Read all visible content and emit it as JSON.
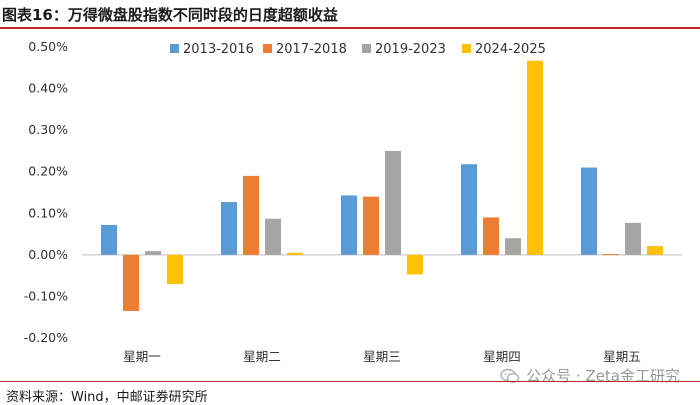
{
  "header": {
    "title": "图表16：万得微盘股指数不同时段的日度超额收益"
  },
  "footer": {
    "source": "资料来源：Wind，中邮证券研究所"
  },
  "watermark": {
    "text": "公众号 · Zeta金工研究",
    "icon": "wechat-icon"
  },
  "colors": {
    "title_rule": "#c0282d"
  },
  "chart_data": {
    "type": "bar",
    "categories": [
      "星期一",
      "星期二",
      "星期三",
      "星期四",
      "星期五"
    ],
    "series": [
      {
        "name": "2013-2016",
        "color": "#5b9bd5",
        "values": [
          0.072,
          0.127,
          0.143,
          0.218,
          0.21
        ]
      },
      {
        "name": "2017-2018",
        "color": "#ed7d31",
        "values": [
          -0.135,
          0.19,
          0.14,
          0.09,
          0.002
        ]
      },
      {
        "name": "2019-2023",
        "color": "#a5a5a5",
        "values": [
          0.009,
          0.087,
          0.25,
          0.04,
          0.077
        ]
      },
      {
        "name": "2024-2025",
        "color": "#ffc000",
        "values": [
          -0.07,
          0.005,
          -0.047,
          0.467,
          0.021
        ]
      }
    ],
    "yticks": [
      "-0.20%",
      "-0.10%",
      "0.00%",
      "0.10%",
      "0.20%",
      "0.30%",
      "0.40%",
      "0.50%"
    ],
    "ylim": [
      -0.2,
      0.5
    ],
    "legend_position": "top",
    "grid": false
  }
}
